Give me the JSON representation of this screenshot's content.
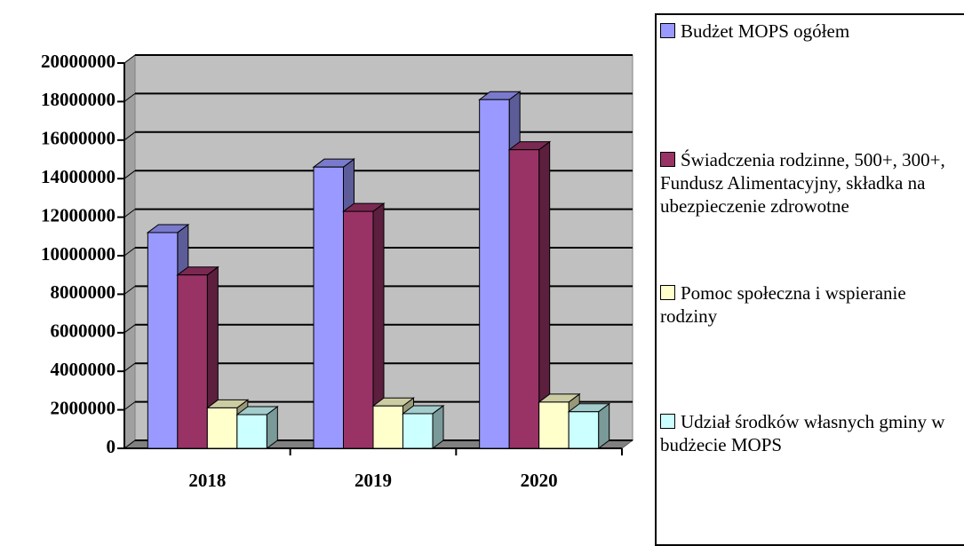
{
  "chart_data": {
    "type": "bar3d",
    "categories": [
      "2018",
      "2019",
      "2020"
    ],
    "series": [
      {
        "name": "Budżet MOPS ogółem",
        "color": "#9999ff",
        "values": [
          11200000,
          14600000,
          18100000
        ]
      },
      {
        "name": "Świadczenia rodzinne, 500+, 300+, Fundusz Alimentacyjny, składka na ubezpieczenie zdrowotne",
        "color": "#993366",
        "values": [
          9000000,
          12300000,
          15500000
        ]
      },
      {
        "name": "Pomoc społeczna i wspieranie rodziny",
        "color": "#ffffcc",
        "values": [
          2100000,
          2200000,
          2400000
        ]
      },
      {
        "name": "Udział środków własnych gminy w budżecie MOPS",
        "color": "#ccffff",
        "values": [
          1750000,
          1800000,
          1900000
        ]
      }
    ],
    "ylim": [
      0,
      20000000
    ],
    "yticks": [
      0,
      2000000,
      4000000,
      6000000,
      8000000,
      10000000,
      12000000,
      14000000,
      16000000,
      18000000,
      20000000
    ],
    "grid": true,
    "legend": "right"
  }
}
